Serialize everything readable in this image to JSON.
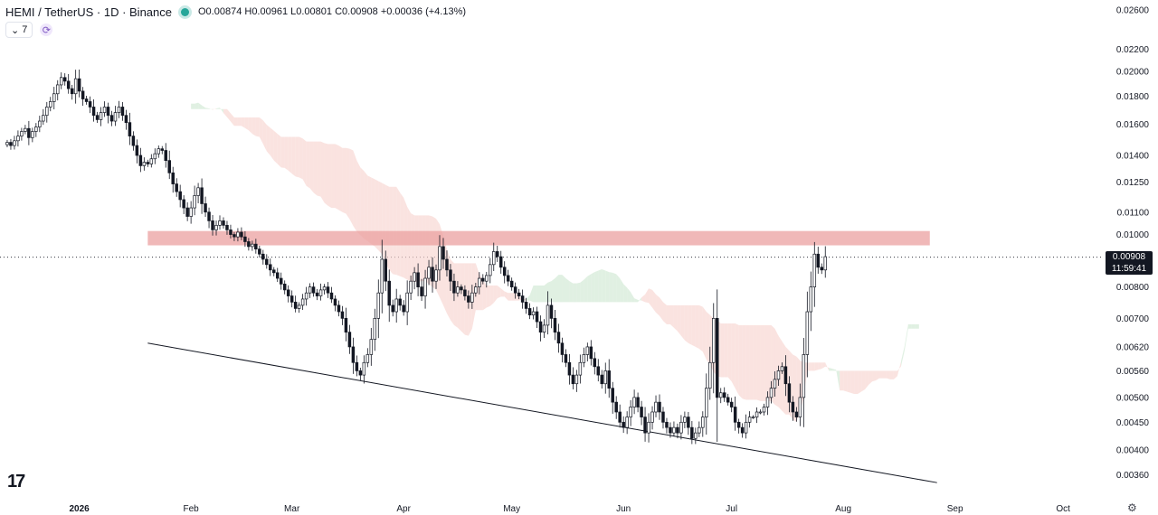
{
  "header": {
    "symbol_title": "HEMI / TetherUS · 1D · Binance",
    "ohlc": "O0.00874 H0.00961 L0.00801 C0.00908 +0.00036 (+4.13%)",
    "indicator_count": "7"
  },
  "price_tag": {
    "price": "0.00908",
    "countdown": "11:59:41"
  },
  "colors": {
    "up": "#131722",
    "down": "#131722",
    "cloud_bear": "#f8d4d0",
    "cloud_bull": "#cfe8d2",
    "resistance_zone": "#eba0a0",
    "support_line": "#131722"
  },
  "chart_data": {
    "type": "candlestick",
    "scale": "log",
    "ylim": [
      0.0033,
      0.0265
    ],
    "x_range_days": [
      -22,
      283
    ],
    "y_ticks": [
      "0.02600",
      "0.02200",
      "0.02000",
      "0.01800",
      "0.01600",
      "0.01400",
      "0.01250",
      "0.01100",
      "0.01000",
      "0.00908",
      "0.00800",
      "0.00700",
      "0.00620",
      "0.00560",
      "0.00500",
      "0.00450",
      "0.00400",
      "0.00360"
    ],
    "x_ticks": [
      {
        "label": "2026",
        "day": 0
      },
      {
        "label": "Feb",
        "day": 31
      },
      {
        "label": "Mar",
        "day": 59
      },
      {
        "label": "Apr",
        "day": 90
      },
      {
        "label": "May",
        "day": 120
      },
      {
        "label": "Jun",
        "day": 151
      },
      {
        "label": "Jul",
        "day": 181
      },
      {
        "label": "Aug",
        "day": 212
      },
      {
        "label": "Sep",
        "day": 243
      },
      {
        "label": "Oct",
        "day": 273
      }
    ],
    "last_price": 0.00908,
    "resistance_zone": {
      "start_day": 19,
      "end_day": 236,
      "low": 0.00955,
      "high": 0.01015
    },
    "support_line": {
      "start": {
        "day": 19,
        "price": 0.0063
      },
      "end": {
        "day": 238,
        "price": 0.00348
      }
    },
    "closes": [
      0.0148,
      0.0146,
      0.0149,
      0.0152,
      0.0155,
      0.0157,
      0.0151,
      0.0155,
      0.0158,
      0.0162,
      0.0166,
      0.0172,
      0.0176,
      0.0182,
      0.0189,
      0.0195,
      0.0192,
      0.0186,
      0.0182,
      0.0194,
      0.0184,
      0.0178,
      0.0176,
      0.0172,
      0.0166,
      0.0163,
      0.0168,
      0.0172,
      0.0166,
      0.0162,
      0.0168,
      0.0172,
      0.0166,
      0.0161,
      0.0152,
      0.0146,
      0.014,
      0.0134,
      0.0136,
      0.0135,
      0.0138,
      0.0141,
      0.0144,
      0.0143,
      0.0137,
      0.013,
      0.0124,
      0.012,
      0.0116,
      0.0112,
      0.0108,
      0.0112,
      0.0118,
      0.0122,
      0.0114,
      0.011,
      0.0106,
      0.0102,
      0.0104,
      0.0106,
      0.0104,
      0.0102,
      0.01,
      0.0099,
      0.0101,
      0.0099,
      0.0097,
      0.0095,
      0.0096,
      0.0094,
      0.0092,
      0.009,
      0.0088,
      0.0086,
      0.0085,
      0.0083,
      0.0081,
      0.0079,
      0.0077,
      0.0075,
      0.0073,
      0.0074,
      0.0076,
      0.0078,
      0.008,
      0.0078,
      0.0077,
      0.0079,
      0.008,
      0.0078,
      0.0076,
      0.0074,
      0.0072,
      0.007,
      0.0066,
      0.0062,
      0.0058,
      0.0056,
      0.0055,
      0.0058,
      0.006,
      0.0064,
      0.007,
      0.0078,
      0.009,
      0.0082,
      0.0074,
      0.0072,
      0.0076,
      0.0074,
      0.0072,
      0.0078,
      0.0082,
      0.0085,
      0.008,
      0.0077,
      0.0083,
      0.0087,
      0.0082,
      0.0086,
      0.0095,
      0.009,
      0.0086,
      0.0082,
      0.0078,
      0.008,
      0.0079,
      0.0077,
      0.0075,
      0.0078,
      0.008,
      0.0083,
      0.0082,
      0.0084,
      0.0088,
      0.0093,
      0.0091,
      0.0087,
      0.0084,
      0.0082,
      0.008,
      0.0078,
      0.0077,
      0.0075,
      0.0073,
      0.0071,
      0.0072,
      0.0069,
      0.0066,
      0.0068,
      0.0074,
      0.007,
      0.0066,
      0.0063,
      0.006,
      0.0058,
      0.0055,
      0.0053,
      0.0055,
      0.0058,
      0.006,
      0.0062,
      0.0059,
      0.0057,
      0.0055,
      0.0053,
      0.0056,
      0.0052,
      0.0049,
      0.0047,
      0.0045,
      0.0044,
      0.0046,
      0.0048,
      0.005,
      0.0048,
      0.0046,
      0.0043,
      0.0045,
      0.0047,
      0.0049,
      0.0047,
      0.0045,
      0.0044,
      0.0043,
      0.0044,
      0.0043,
      0.0045,
      0.0046,
      0.0044,
      0.0042,
      0.0043,
      0.0044,
      0.0046,
      0.0052,
      0.0058,
      0.007,
      0.005,
      0.0051,
      0.005,
      0.0049,
      0.0048,
      0.0045,
      0.0044,
      0.0043,
      0.0045,
      0.0046,
      0.0046,
      0.0047,
      0.0047,
      0.0048,
      0.005,
      0.0052,
      0.0054,
      0.0056,
      0.0057,
      0.0053,
      0.0049,
      0.0047,
      0.0046,
      0.005,
      0.006,
      0.0072,
      0.008,
      0.0092,
      0.0087,
      0.0086,
      0.0091
    ]
  }
}
